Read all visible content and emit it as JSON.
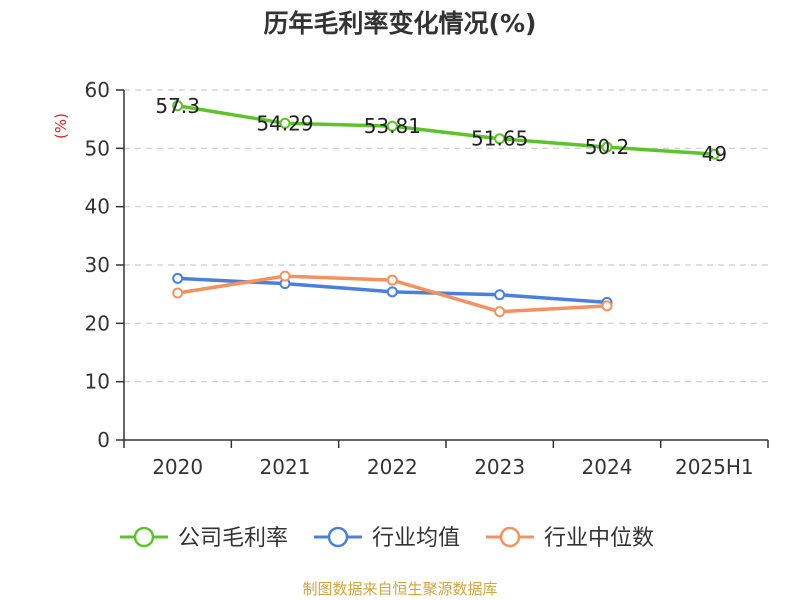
{
  "title": "历年毛利率变化情况(%)",
  "footer": "制图数据来自恒生聚源数据库",
  "colors": {
    "company": "#5cc429",
    "industry_avg": "#4b7fde",
    "industry_median": "#f5915e",
    "grid": "#cccccc",
    "axis": "#333333",
    "unit": "#e02020",
    "footer": "#d4a33c"
  },
  "chart_data": {
    "type": "line",
    "title": "历年毛利率变化情况(%)",
    "ylabel": "(%)",
    "xlabel": "",
    "categories": [
      "2020",
      "2021",
      "2022",
      "2023",
      "2024",
      "2025H1"
    ],
    "ylim": [
      0,
      60
    ],
    "yticks": [
      0,
      10,
      20,
      30,
      40,
      50,
      60
    ],
    "grid": "horizontal dashed",
    "legend_position": "bottom",
    "series": [
      {
        "name": "公司毛利率",
        "color": "#5cc429",
        "values": [
          57.3,
          54.29,
          53.81,
          51.65,
          50.2,
          49
        ],
        "labels": [
          "57.3",
          "54.29",
          "53.81",
          "51.65",
          "50.2",
          "49"
        ],
        "show_labels": true
      },
      {
        "name": "行业均值",
        "color": "#4b7fde",
        "values": [
          27.7,
          26.8,
          25.4,
          24.9,
          23.6,
          null
        ],
        "show_labels": false
      },
      {
        "name": "行业中位数",
        "color": "#f5915e",
        "values": [
          25.2,
          28.1,
          27.4,
          22.0,
          23.0,
          null
        ],
        "show_labels": false
      }
    ]
  }
}
